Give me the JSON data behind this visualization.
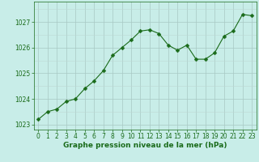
{
  "x": [
    0,
    1,
    2,
    3,
    4,
    5,
    6,
    7,
    8,
    9,
    10,
    11,
    12,
    13,
    14,
    15,
    16,
    17,
    18,
    19,
    20,
    21,
    22,
    23
  ],
  "y": [
    1023.2,
    1023.5,
    1023.6,
    1023.9,
    1024.0,
    1024.4,
    1024.7,
    1025.1,
    1025.7,
    1026.0,
    1026.3,
    1026.65,
    1026.7,
    1026.55,
    1026.1,
    1025.9,
    1026.1,
    1025.55,
    1025.55,
    1025.8,
    1026.45,
    1026.65,
    1027.3,
    1027.25
  ],
  "line_color": "#1a6b1a",
  "marker": "D",
  "marker_size": 2.5,
  "bg_color": "#c8ede8",
  "grid_color_major": "#a8c8c4",
  "grid_color_minor": "#bcd8d4",
  "xlabel": "Graphe pression niveau de la mer (hPa)",
  "xlabel_color": "#1a6b1a",
  "xlabel_fontsize": 6.5,
  "tick_color": "#1a6b1a",
  "tick_fontsize": 5.5,
  "ylim": [
    1022.8,
    1027.8
  ],
  "yticks": [
    1023,
    1024,
    1025,
    1026,
    1027
  ],
  "xlim": [
    -0.5,
    23.5
  ],
  "xticks": [
    0,
    1,
    2,
    3,
    4,
    5,
    6,
    7,
    8,
    9,
    10,
    11,
    12,
    13,
    14,
    15,
    16,
    17,
    18,
    19,
    20,
    21,
    22,
    23
  ]
}
